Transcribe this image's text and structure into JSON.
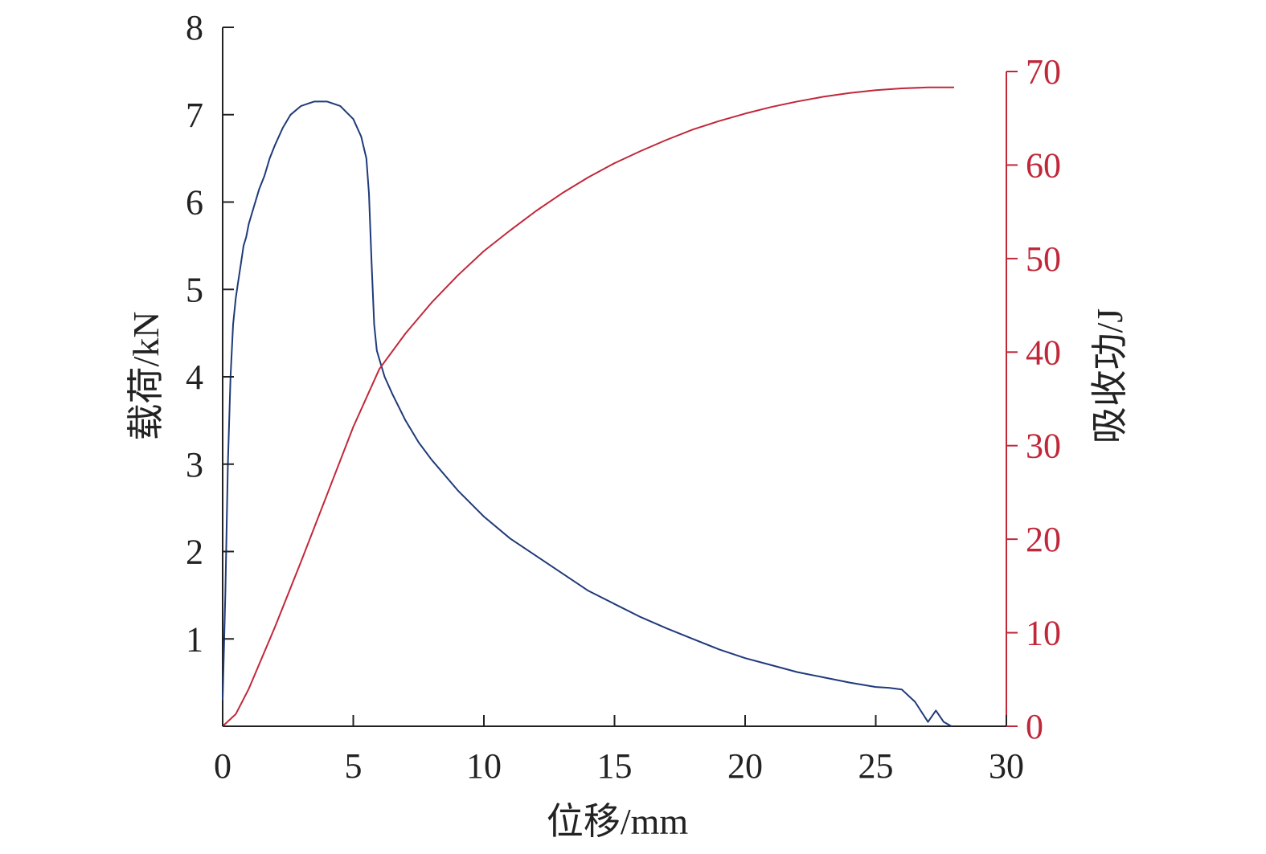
{
  "chart_data": {
    "type": "line",
    "xlabel": "位移/mm",
    "ylabel_left": "载荷/kN",
    "ylabel_right": "吸收功/J",
    "xlim": [
      0,
      30
    ],
    "ylim_left": [
      0,
      8
    ],
    "ylim_right": [
      0,
      70
    ],
    "x_ticks": [
      0,
      5,
      10,
      15,
      20,
      25,
      30
    ],
    "y_left_ticks": [
      1,
      2,
      3,
      4,
      5,
      6,
      7,
      8
    ],
    "y_right_ticks": [
      0,
      10,
      20,
      30,
      40,
      50,
      60,
      70
    ],
    "grid": false,
    "colors": {
      "load": "#1f3a7a",
      "energy": "#c0283a",
      "axis_right": "#c0283a",
      "axis_left": "#222222"
    },
    "series": [
      {
        "axis": "left",
        "x": [
          0.0,
          0.1,
          0.2,
          0.3,
          0.4,
          0.5,
          0.6,
          0.7,
          0.8,
          0.9,
          1.0,
          1.2,
          1.4,
          1.6,
          1.8,
          2.0,
          2.3,
          2.6,
          3.0,
          3.5,
          4.0,
          4.5,
          5.0,
          5.3,
          5.5,
          5.6,
          5.7,
          5.8,
          5.9,
          6.0,
          6.2,
          6.5,
          7.0,
          7.5,
          8.0,
          9.0,
          10.0,
          11.0,
          12.0,
          13.0,
          14.0,
          15.0,
          16.0,
          17.0,
          18.0,
          19.0,
          20.0,
          21.0,
          22.0,
          23.0,
          24.0,
          25.0,
          25.5,
          26.0,
          26.5,
          27.0,
          27.3,
          27.6,
          27.9
        ],
        "y": [
          0.3,
          1.5,
          3.0,
          4.0,
          4.6,
          4.9,
          5.1,
          5.3,
          5.5,
          5.6,
          5.75,
          5.95,
          6.15,
          6.3,
          6.5,
          6.65,
          6.85,
          7.0,
          7.1,
          7.15,
          7.15,
          7.1,
          6.95,
          6.75,
          6.5,
          6.1,
          5.3,
          4.6,
          4.3,
          4.2,
          4.0,
          3.8,
          3.5,
          3.25,
          3.05,
          2.7,
          2.4,
          2.15,
          1.95,
          1.75,
          1.55,
          1.4,
          1.25,
          1.12,
          1.0,
          0.88,
          0.78,
          0.7,
          0.62,
          0.56,
          0.5,
          0.45,
          0.44,
          0.42,
          0.28,
          0.05,
          0.18,
          0.05,
          0.0
        ]
      },
      {
        "axis": "right",
        "x": [
          0.0,
          0.5,
          1.0,
          2.0,
          3.0,
          4.0,
          5.0,
          6.0,
          7.0,
          8.0,
          9.0,
          10.0,
          11.0,
          12.0,
          13.0,
          14.0,
          15.0,
          16.0,
          17.0,
          18.0,
          19.0,
          20.0,
          21.0,
          22.0,
          23.0,
          24.0,
          25.0,
          26.0,
          27.0,
          28.0
        ],
        "y": [
          0.0,
          1.3,
          4.0,
          10.6,
          17.6,
          24.8,
          32.0,
          38.2,
          42.0,
          45.3,
          48.2,
          50.8,
          53.0,
          55.1,
          57.0,
          58.7,
          60.2,
          61.5,
          62.7,
          63.8,
          64.7,
          65.5,
          66.2,
          66.8,
          67.3,
          67.7,
          68.0,
          68.2,
          68.3,
          68.3
        ]
      }
    ]
  }
}
